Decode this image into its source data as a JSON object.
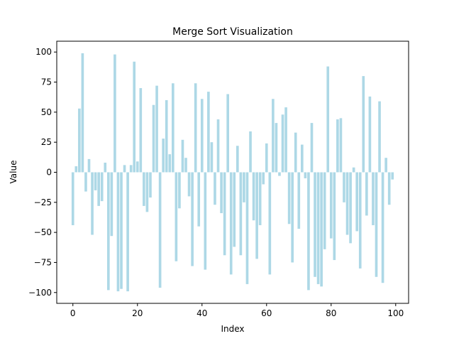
{
  "chart_data": {
    "type": "bar",
    "title": "Merge Sort Visualization",
    "xlabel": "Index",
    "ylabel": "Value",
    "xlim": [
      -5,
      104
    ],
    "ylim": [
      -109,
      109
    ],
    "xticks": [
      0,
      20,
      40,
      60,
      80,
      100
    ],
    "yticks": [
      -100,
      -75,
      -50,
      -25,
      0,
      25,
      50,
      75,
      100
    ],
    "bar_color": "#add8e6",
    "grid": false,
    "legend": "none",
    "x": [
      0,
      1,
      2,
      3,
      4,
      5,
      6,
      7,
      8,
      9,
      10,
      11,
      12,
      13,
      14,
      15,
      16,
      17,
      18,
      19,
      20,
      21,
      22,
      23,
      24,
      25,
      26,
      27,
      28,
      29,
      30,
      31,
      32,
      33,
      34,
      35,
      36,
      37,
      38,
      39,
      40,
      41,
      42,
      43,
      44,
      45,
      46,
      47,
      48,
      49,
      50,
      51,
      52,
      53,
      54,
      55,
      56,
      57,
      58,
      59,
      60,
      61,
      62,
      63,
      64,
      65,
      66,
      67,
      68,
      69,
      70,
      71,
      72,
      73,
      74,
      75,
      76,
      77,
      78,
      79,
      80,
      81,
      82,
      83,
      84,
      85,
      86,
      87,
      88,
      89,
      90,
      91,
      92,
      93,
      94,
      95,
      96,
      97,
      98,
      99
    ],
    "values": [
      -44,
      5,
      53,
      99,
      -16,
      11,
      -52,
      -15,
      -28,
      -24,
      8,
      -98,
      -53,
      98,
      -99,
      -97,
      6,
      -99,
      6,
      92,
      9,
      70,
      -28,
      -33,
      -21,
      56,
      72,
      -96,
      28,
      60,
      15,
      74,
      -74,
      -30,
      27,
      12,
      -20,
      -78,
      74,
      -45,
      61,
      -81,
      67,
      25,
      -27,
      44,
      -34,
      -69,
      65,
      -85,
      -62,
      22,
      -69,
      -25,
      -93,
      34,
      -40,
      -72,
      -44,
      -10,
      24,
      -85,
      61,
      41,
      -3,
      48,
      54,
      -43,
      -75,
      33,
      -47,
      23,
      -5,
      -98,
      41,
      -87,
      -93,
      -95,
      -64,
      88,
      -55,
      -73,
      44,
      45,
      -25,
      -52,
      -59,
      4,
      -49,
      -80,
      80,
      -36,
      63,
      -44,
      -87,
      59,
      -92,
      12,
      -27,
      -6
    ]
  }
}
